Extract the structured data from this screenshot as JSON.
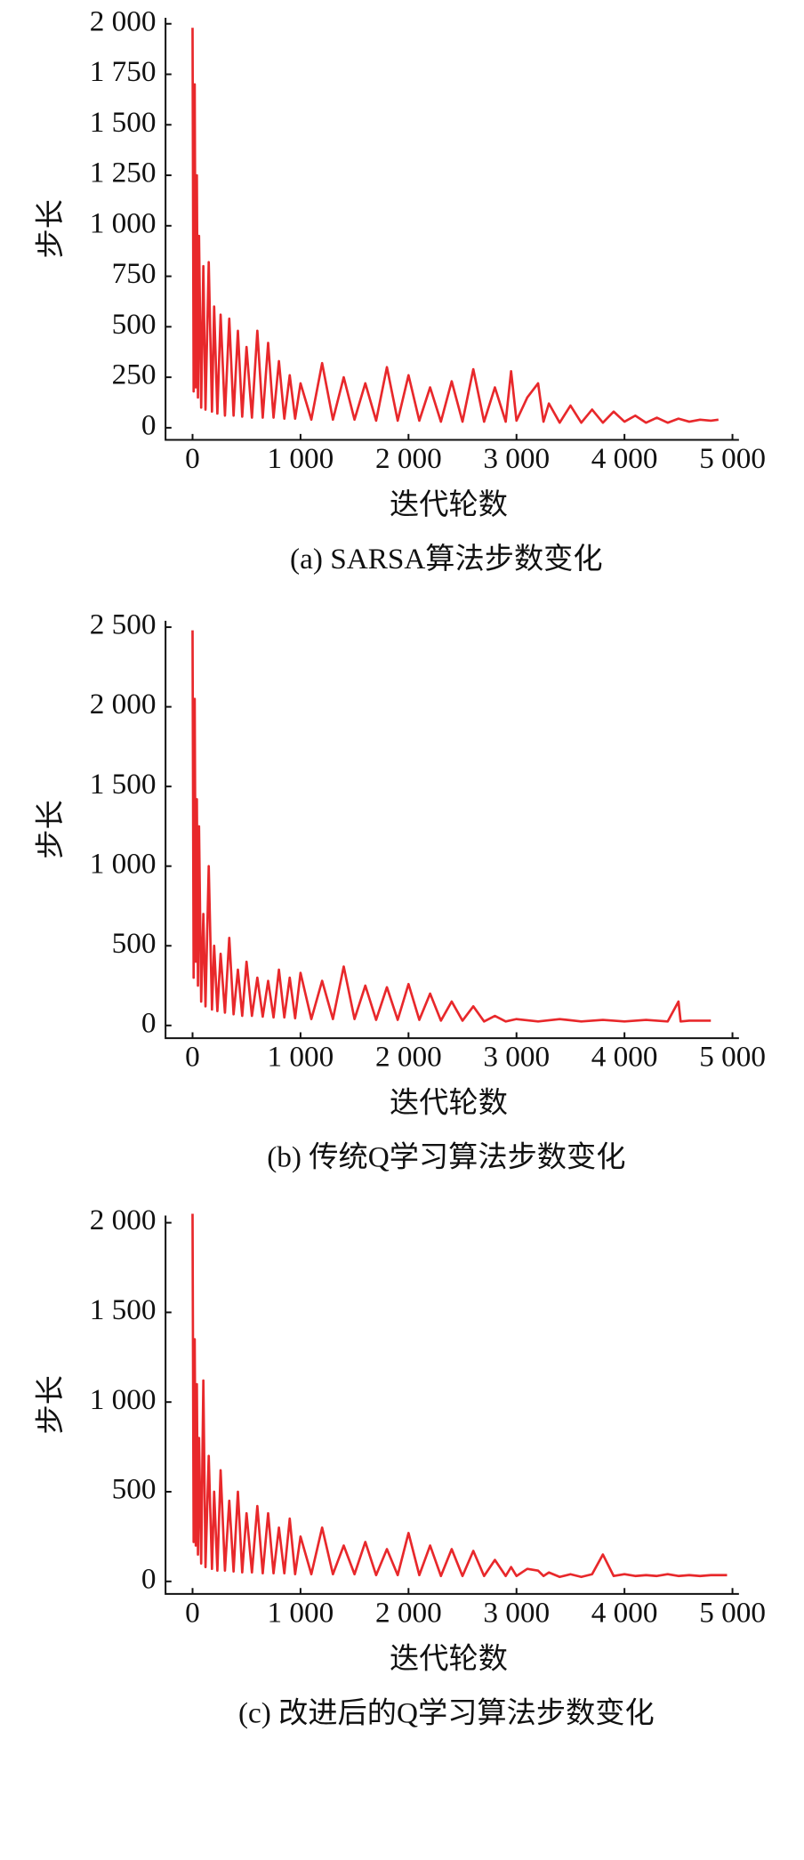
{
  "chart_data": [
    {
      "type": "line",
      "title": "(a) SARSA算法步数变化",
      "x_label": "迭代轮数",
      "y_label": "步长",
      "color": "#e8282b",
      "xlim": [
        -250,
        5060
      ],
      "ylim": [
        -60,
        2030
      ],
      "xticks": [
        0,
        {
          "value": 1000,
          "label": "1 000"
        },
        {
          "value": 2000,
          "label": "2 000"
        },
        {
          "value": 3000,
          "label": "3 000"
        },
        {
          "value": 4000,
          "label": "4 000"
        },
        {
          "value": 5000,
          "label": "5 000"
        }
      ],
      "yticks": [
        0,
        250,
        500,
        750,
        {
          "value": 1000,
          "label": "1 000"
        },
        {
          "value": 1250,
          "label": "1 250"
        },
        {
          "value": 1500,
          "label": "1 500"
        },
        {
          "value": 1750,
          "label": "1 750"
        },
        {
          "value": 2000,
          "label": "2 000"
        }
      ],
      "x": [
        0,
        10,
        20,
        30,
        40,
        50,
        60,
        80,
        100,
        120,
        150,
        180,
        200,
        230,
        260,
        300,
        340,
        380,
        420,
        460,
        500,
        550,
        600,
        650,
        700,
        750,
        800,
        850,
        900,
        950,
        1000,
        1100,
        1200,
        1300,
        1400,
        1500,
        1600,
        1700,
        1800,
        1900,
        2000,
        2100,
        2200,
        2300,
        2400,
        2500,
        2600,
        2700,
        2800,
        2900,
        2950,
        3000,
        3100,
        3200,
        3250,
        3300,
        3400,
        3500,
        3600,
        3700,
        3800,
        3900,
        4000,
        4100,
        4200,
        4300,
        4400,
        4500,
        4600,
        4700,
        4800,
        4870
      ],
      "values": [
        1980,
        180,
        1700,
        200,
        1250,
        150,
        950,
        100,
        800,
        90,
        820,
        80,
        600,
        70,
        560,
        60,
        540,
        60,
        480,
        55,
        400,
        50,
        480,
        50,
        420,
        50,
        330,
        45,
        260,
        45,
        220,
        40,
        320,
        40,
        250,
        40,
        220,
        35,
        300,
        35,
        260,
        35,
        200,
        30,
        230,
        30,
        290,
        30,
        200,
        30,
        280,
        35,
        150,
        220,
        30,
        120,
        25,
        110,
        25,
        90,
        25,
        80,
        30,
        60,
        25,
        50,
        25,
        45,
        30,
        40,
        35,
        40
      ]
    },
    {
      "type": "line",
      "title": "(b) 传统Q学习算法步数变化",
      "x_label": "迭代轮数",
      "y_label": "步长",
      "color": "#e8282b",
      "xlim": [
        -250,
        5060
      ],
      "ylim": [
        -80,
        2540
      ],
      "xticks": [
        0,
        {
          "value": 1000,
          "label": "1 000"
        },
        {
          "value": 2000,
          "label": "2 000"
        },
        {
          "value": 3000,
          "label": "3 000"
        },
        {
          "value": 4000,
          "label": "4 000"
        },
        {
          "value": 5000,
          "label": "5 000"
        }
      ],
      "yticks": [
        0,
        500,
        {
          "value": 1000,
          "label": "1 000"
        },
        {
          "value": 1500,
          "label": "1 500"
        },
        {
          "value": 2000,
          "label": "2 000"
        },
        {
          "value": 2500,
          "label": "2 500"
        }
      ],
      "x": [
        0,
        10,
        20,
        30,
        40,
        50,
        60,
        80,
        100,
        120,
        150,
        180,
        200,
        230,
        260,
        300,
        340,
        380,
        420,
        460,
        500,
        550,
        600,
        650,
        700,
        750,
        800,
        850,
        900,
        950,
        1000,
        1100,
        1200,
        1300,
        1400,
        1500,
        1600,
        1700,
        1800,
        1900,
        2000,
        2100,
        2200,
        2300,
        2400,
        2500,
        2600,
        2700,
        2800,
        2900,
        3000,
        3200,
        3400,
        3600,
        3800,
        4000,
        4200,
        4400,
        4500,
        4520,
        4600,
        4800
      ],
      "values": [
        2480,
        300,
        2050,
        400,
        1420,
        250,
        1250,
        150,
        700,
        120,
        1000,
        100,
        500,
        90,
        450,
        80,
        550,
        70,
        350,
        60,
        400,
        60,
        300,
        55,
        280,
        50,
        350,
        50,
        300,
        45,
        330,
        40,
        280,
        40,
        370,
        40,
        250,
        35,
        240,
        35,
        260,
        35,
        200,
        30,
        150,
        30,
        120,
        25,
        60,
        25,
        40,
        25,
        40,
        25,
        35,
        25,
        35,
        25,
        150,
        25,
        30,
        30
      ]
    },
    {
      "type": "line",
      "title": "(c) 改进后的Q学习算法步数变化",
      "x_label": "迭代轮数",
      "y_label": "步长",
      "color": "#e8282b",
      "xlim": [
        -250,
        5060
      ],
      "ylim": [
        -70,
        2040
      ],
      "xticks": [
        0,
        {
          "value": 1000,
          "label": "1 000"
        },
        {
          "value": 2000,
          "label": "2 000"
        },
        {
          "value": 3000,
          "label": "3 000"
        },
        {
          "value": 4000,
          "label": "4 000"
        },
        {
          "value": 5000,
          "label": "5 000"
        }
      ],
      "yticks": [
        0,
        500,
        {
          "value": 1000,
          "label": "1 000"
        },
        {
          "value": 1500,
          "label": "1 500"
        },
        {
          "value": 2000,
          "label": "2 000"
        }
      ],
      "x": [
        0,
        10,
        20,
        30,
        40,
        50,
        60,
        80,
        100,
        120,
        150,
        180,
        200,
        230,
        260,
        300,
        340,
        380,
        420,
        460,
        500,
        550,
        600,
        650,
        700,
        750,
        800,
        850,
        900,
        950,
        1000,
        1100,
        1200,
        1300,
        1400,
        1500,
        1600,
        1700,
        1800,
        1900,
        2000,
        2100,
        2200,
        2300,
        2400,
        2500,
        2600,
        2700,
        2800,
        2900,
        2950,
        3000,
        3100,
        3200,
        3250,
        3300,
        3400,
        3500,
        3600,
        3700,
        3800,
        3900,
        4000,
        4100,
        4200,
        4300,
        4400,
        4500,
        4600,
        4700,
        4800,
        4950
      ],
      "values": [
        2050,
        220,
        1350,
        200,
        1100,
        150,
        800,
        100,
        1120,
        80,
        700,
        70,
        500,
        60,
        620,
        60,
        450,
        55,
        500,
        50,
        380,
        50,
        420,
        45,
        380,
        45,
        300,
        45,
        350,
        40,
        250,
        40,
        300,
        40,
        200,
        40,
        220,
        35,
        180,
        35,
        270,
        35,
        200,
        30,
        180,
        30,
        170,
        30,
        120,
        30,
        80,
        30,
        70,
        60,
        30,
        50,
        25,
        40,
        25,
        40,
        150,
        30,
        40,
        30,
        35,
        30,
        40,
        30,
        35,
        30,
        35,
        35
      ]
    }
  ]
}
